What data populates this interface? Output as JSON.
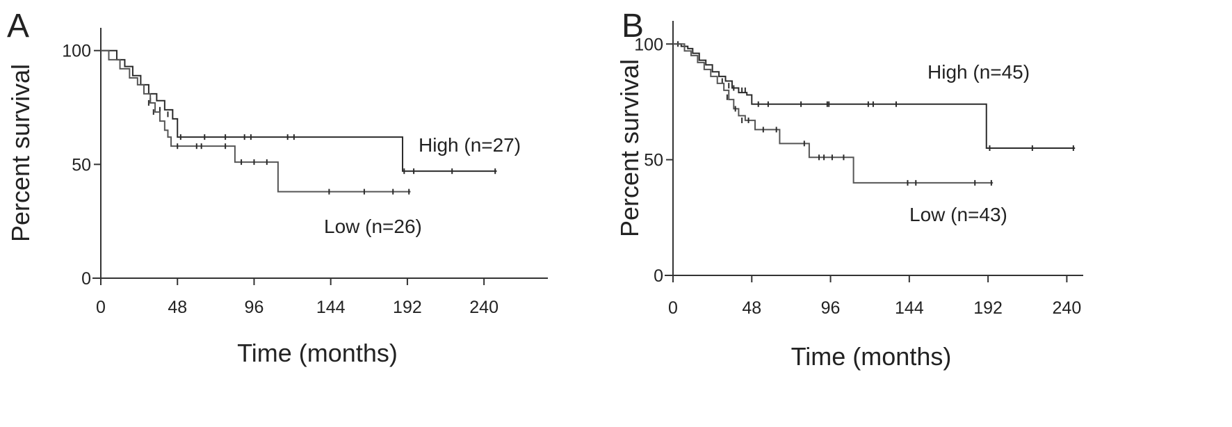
{
  "chart_data": [
    {
      "type": "line",
      "panel_label": "A",
      "xlabel": "Time (months)",
      "ylabel": "Percent survival",
      "xticks": [
        0,
        48,
        96,
        144,
        192,
        240
      ],
      "yticks": [
        0,
        50,
        100
      ],
      "xlim": [
        0,
        280
      ],
      "ylim": [
        0,
        110
      ],
      "series": [
        {
          "name": "High (n=27)",
          "steps": [
            [
              0,
              100
            ],
            [
              10,
              96
            ],
            [
              15,
              93
            ],
            [
              20,
              89
            ],
            [
              25,
              85
            ],
            [
              30,
              81
            ],
            [
              35,
              78
            ],
            [
              40,
              74
            ],
            [
              45,
              70
            ],
            [
              48,
              62
            ],
            [
              188,
              62
            ],
            [
              189,
              47
            ],
            [
              248,
              47
            ]
          ],
          "censored": [
            [
              31,
              78
            ],
            [
              37,
              74
            ],
            [
              42,
              72
            ],
            [
              50,
              62
            ],
            [
              65,
              62
            ],
            [
              78,
              62
            ],
            [
              90,
              62
            ],
            [
              94,
              62
            ],
            [
              117,
              62
            ],
            [
              121,
              62
            ],
            [
              190,
              47
            ],
            [
              196,
              47
            ],
            [
              220,
              47
            ],
            [
              247,
              47
            ]
          ]
        },
        {
          "name": "Low (n=26)",
          "steps": [
            [
              0,
              100
            ],
            [
              5,
              96
            ],
            [
              12,
              92
            ],
            [
              18,
              88
            ],
            [
              23,
              85
            ],
            [
              27,
              81
            ],
            [
              31,
              77
            ],
            [
              34,
              73
            ],
            [
              37,
              69
            ],
            [
              40,
              65
            ],
            [
              42,
              62
            ],
            [
              44,
              58
            ],
            [
              83,
              58
            ],
            [
              84,
              51
            ],
            [
              110,
              51
            ],
            [
              111,
              38
            ],
            [
              194,
              38
            ]
          ],
          "censored": [
            [
              30,
              77
            ],
            [
              33,
              73
            ],
            [
              48,
              58
            ],
            [
              60,
              58
            ],
            [
              63,
              58
            ],
            [
              78,
              58
            ],
            [
              88,
              51
            ],
            [
              96,
              51
            ],
            [
              104,
              51
            ],
            [
              143,
              38
            ],
            [
              165,
              38
            ],
            [
              183,
              38
            ],
            [
              193,
              38
            ]
          ]
        }
      ]
    },
    {
      "type": "line",
      "panel_label": "B",
      "xlabel": "Time (months)",
      "ylabel": "Percent survival",
      "xticks": [
        0,
        48,
        96,
        144,
        192,
        240
      ],
      "yticks": [
        0,
        50,
        100
      ],
      "xlim": [
        0,
        250
      ],
      "ylim": [
        0,
        110
      ],
      "series": [
        {
          "name": "High (n=45)",
          "steps": [
            [
              0,
              100
            ],
            [
              5,
              99
            ],
            [
              9,
              98
            ],
            [
              12,
              96
            ],
            [
              16,
              93
            ],
            [
              20,
              91
            ],
            [
              24,
              88
            ],
            [
              28,
              86
            ],
            [
              32,
              84
            ],
            [
              36,
              81
            ],
            [
              40,
              79
            ],
            [
              45,
              78
            ],
            [
              48,
              74
            ],
            [
              190,
              74
            ],
            [
              191,
              55
            ],
            [
              245,
              55
            ]
          ],
          "censored": [
            [
              3,
              100
            ],
            [
              30,
              84
            ],
            [
              34,
              82
            ],
            [
              37,
              81
            ],
            [
              42,
              80
            ],
            [
              44,
              80
            ],
            [
              52,
              74
            ],
            [
              58,
              74
            ],
            [
              78,
              74
            ],
            [
              94,
              74
            ],
            [
              95,
              74
            ],
            [
              119,
              74
            ],
            [
              122,
              74
            ],
            [
              136,
              74
            ],
            [
              193,
              55
            ],
            [
              219,
              55
            ],
            [
              244,
              55
            ]
          ]
        },
        {
          "name": "Low (n=43)",
          "steps": [
            [
              0,
              100
            ],
            [
              7,
              97
            ],
            [
              11,
              95
            ],
            [
              15,
              92
            ],
            [
              19,
              89
            ],
            [
              23,
              86
            ],
            [
              27,
              83
            ],
            [
              31,
              80
            ],
            [
              34,
              76
            ],
            [
              37,
              72
            ],
            [
              40,
              69
            ],
            [
              44,
              67
            ],
            [
              50,
              63
            ],
            [
              65,
              57
            ],
            [
              83,
              51
            ],
            [
              110,
              40
            ],
            [
              195,
              40
            ]
          ],
          "censored": [
            [
              33,
              77
            ],
            [
              38,
              72
            ],
            [
              42,
              67
            ],
            [
              46,
              67
            ],
            [
              55,
              63
            ],
            [
              63,
              63
            ],
            [
              80,
              57
            ],
            [
              89,
              51
            ],
            [
              92,
              51
            ],
            [
              97,
              51
            ],
            [
              104,
              51
            ],
            [
              143,
              40
            ],
            [
              148,
              40
            ],
            [
              184,
              40
            ],
            [
              194,
              40
            ]
          ]
        }
      ],
      "annotations": [
        "High (n=45)",
        "Low (n=43)"
      ]
    }
  ]
}
